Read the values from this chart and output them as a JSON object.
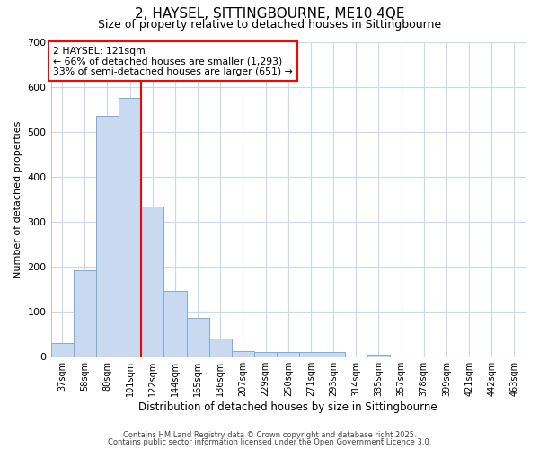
{
  "title1": "2, HAYSEL, SITTINGBOURNE, ME10 4QE",
  "title2": "Size of property relative to detached houses in Sittingbourne",
  "xlabel": "Distribution of detached houses by size in Sittingbourne",
  "ylabel": "Number of detached properties",
  "categories": [
    "37sqm",
    "58sqm",
    "80sqm",
    "101sqm",
    "122sqm",
    "144sqm",
    "165sqm",
    "186sqm",
    "207sqm",
    "229sqm",
    "250sqm",
    "271sqm",
    "293sqm",
    "314sqm",
    "335sqm",
    "357sqm",
    "378sqm",
    "399sqm",
    "421sqm",
    "442sqm",
    "463sqm"
  ],
  "values": [
    30,
    193,
    535,
    575,
    333,
    147,
    87,
    40,
    13,
    10,
    10,
    10,
    10,
    0,
    5,
    0,
    0,
    0,
    0,
    0,
    0
  ],
  "bar_color": "#c9d9ef",
  "bar_edge_color": "#7aabe0",
  "red_line_index": 4,
  "annotation_line1": "2 HAYSEL: 121sqm",
  "annotation_line2": "← 66% of detached houses are smaller (1,293)",
  "annotation_line3": "33% of semi-detached houses are larger (651) →",
  "ylim": [
    0,
    700
  ],
  "yticks": [
    0,
    100,
    200,
    300,
    400,
    500,
    600,
    700
  ],
  "background_color": "#ffffff",
  "plot_bg_color": "#ffffff",
  "grid_color": "#c8d8f0",
  "footer1": "Contains HM Land Registry data © Crown copyright and database right 2025.",
  "footer2": "Contains public sector information licensed under the Open Government Licence 3.0."
}
